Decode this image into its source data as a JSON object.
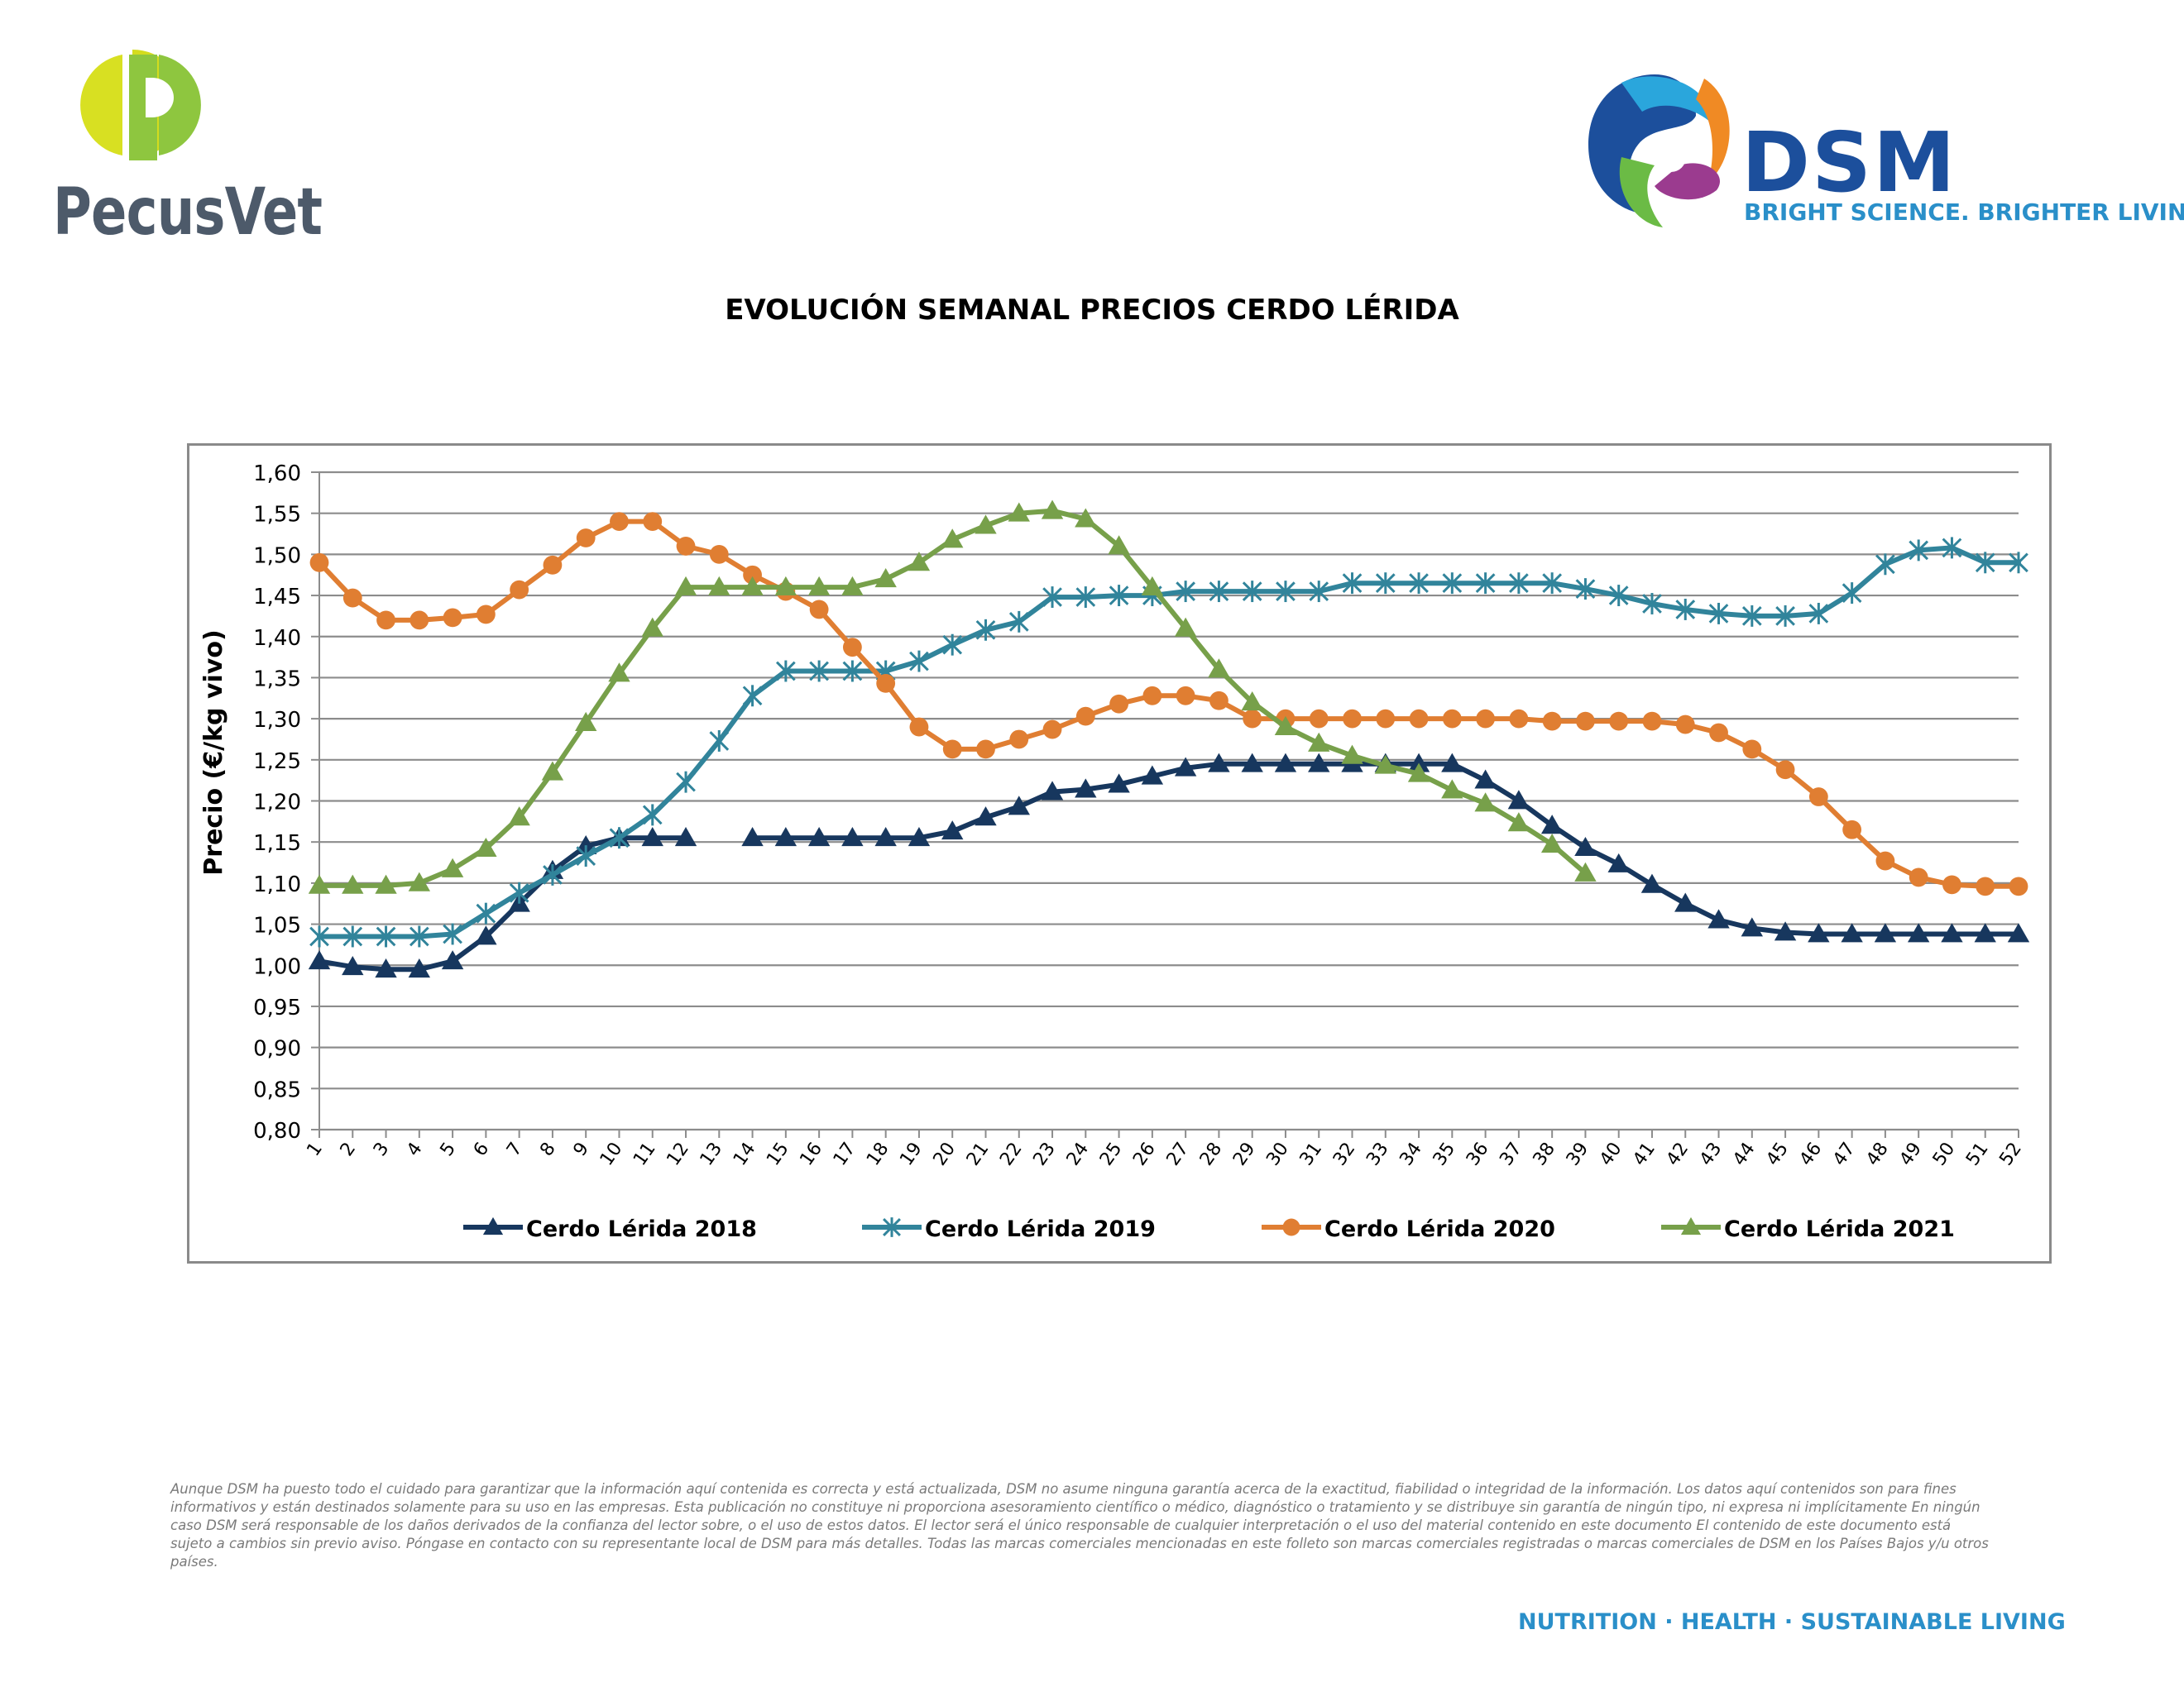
{
  "header": {
    "pecusvet_name": "PecusVet",
    "dsm_name": "DSM",
    "dsm_tagline": "BRIGHT SCIENCE. BRIGHTER LIVING."
  },
  "footer": {
    "disclaimer": "Aunque DSM ha puesto todo el cuidado para garantizar que la información aquí contenida es correcta y está actualizada, DSM no asume ninguna garantía acerca de la exactitud, fiabilidad o integridad de la información. Los datos aquí contenidos son para fines informativos y están destinados solamente para su uso en las empresas. Esta publicación no constituye ni proporciona asesoramiento científico o médico, diagnóstico o tratamiento y se distribuye sin garantía de ningún tipo, ni expresa ni implícitamente En ningún caso DSM será responsable de los daños derivados de la confianza del lector sobre, o el uso de estos datos. El lector será el único responsable de cualquier interpretación o el uso del material contenido en este documento El contenido de este documento está sujeto a cambios sin previo aviso. Póngase en contacto con su representante local de DSM para más detalles. Todas las marcas comerciales mencionadas en este folleto son marcas comerciales registradas o marcas comerciales de DSM en los Países Bajos y/u otros países.",
    "tagline": "NUTRITION · HEALTH · SUSTAINABLE LIVING"
  },
  "chart_data": {
    "type": "line",
    "title": "EVOLUCIÓN SEMANAL PRECIOS CERDO LÉRIDA",
    "xlabel": "",
    "ylabel": "Precio (€/kg vivo)",
    "ylim": [
      0.8,
      1.6
    ],
    "ystep": 0.05,
    "grid": true,
    "legend": "bottom",
    "x": [
      1,
      2,
      3,
      4,
      5,
      6,
      7,
      8,
      9,
      10,
      11,
      12,
      13,
      14,
      15,
      16,
      17,
      18,
      19,
      20,
      21,
      22,
      23,
      24,
      25,
      26,
      27,
      28,
      29,
      30,
      31,
      32,
      33,
      34,
      35,
      36,
      37,
      38,
      39,
      40,
      41,
      42,
      43,
      44,
      45,
      46,
      47,
      48,
      49,
      50,
      51,
      52
    ],
    "series": [
      {
        "name": "Cerdo Lérida 2018",
        "color": "#17375e",
        "marker": "triangle",
        "values": [
          1.005,
          0.998,
          0.995,
          0.995,
          1.005,
          1.035,
          1.075,
          1.115,
          1.145,
          1.155,
          1.155,
          1.155,
          null,
          1.155,
          1.155,
          1.155,
          1.155,
          1.155,
          1.155,
          1.163,
          1.18,
          1.193,
          1.211,
          1.214,
          1.22,
          1.23,
          1.24,
          1.245,
          1.245,
          1.245,
          1.245,
          1.245,
          1.245,
          1.245,
          1.245,
          1.225,
          1.2,
          1.17,
          1.143,
          1.123,
          1.098,
          1.075,
          1.055,
          1.045,
          1.04,
          1.038,
          1.038,
          1.038,
          1.038,
          1.038,
          1.038,
          1.038
        ]
      },
      {
        "name": "Cerdo Lérida 2019",
        "color": "#31849b",
        "marker": "star",
        "values": [
          1.035,
          1.035,
          1.035,
          1.035,
          1.038,
          1.063,
          1.088,
          1.11,
          1.133,
          1.155,
          1.183,
          1.223,
          1.273,
          1.328,
          1.358,
          1.358,
          1.358,
          1.358,
          1.37,
          1.39,
          1.408,
          1.418,
          1.448,
          1.448,
          1.45,
          1.45,
          1.455,
          1.455,
          1.455,
          1.455,
          1.455,
          1.465,
          1.465,
          1.465,
          1.465,
          1.465,
          1.465,
          1.465,
          1.458,
          1.45,
          1.44,
          1.433,
          1.428,
          1.425,
          1.425,
          1.428,
          1.453,
          1.488,
          1.505,
          1.508,
          1.49,
          1.49
        ]
      },
      {
        "name": "Cerdo Lérida 2020",
        "color": "#e07e32",
        "marker": "circle",
        "values": [
          1.49,
          1.447,
          1.42,
          1.42,
          1.423,
          1.427,
          1.457,
          1.487,
          1.52,
          1.54,
          1.54,
          1.51,
          1.5,
          1.475,
          1.455,
          1.433,
          1.387,
          1.343,
          1.29,
          1.263,
          1.263,
          1.275,
          1.287,
          1.303,
          1.318,
          1.328,
          1.328,
          1.322,
          1.3,
          1.3,
          1.3,
          1.3,
          1.3,
          1.3,
          1.3,
          1.3,
          1.3,
          1.297,
          1.297,
          1.297,
          1.297,
          1.293,
          1.283,
          1.263,
          1.238,
          1.205,
          1.165,
          1.127,
          1.107,
          1.098,
          1.096,
          1.096
        ]
      },
      {
        "name": "Cerdo Lérida 2021",
        "color": "#77a04a",
        "marker": "triangle",
        "values": [
          1.097,
          1.097,
          1.097,
          1.1,
          1.117,
          1.142,
          1.18,
          1.235,
          1.295,
          1.355,
          1.41,
          1.46,
          1.46,
          1.46,
          1.46,
          1.46,
          1.46,
          1.47,
          1.49,
          1.518,
          1.535,
          1.55,
          1.553,
          1.543,
          1.51,
          1.46,
          1.41,
          1.36,
          1.32,
          1.29,
          1.27,
          1.255,
          1.243,
          1.233,
          1.213,
          1.197,
          1.173,
          1.147,
          1.112,
          null,
          null,
          null,
          null,
          null,
          null,
          null,
          null,
          null,
          null,
          null,
          null,
          null
        ]
      }
    ]
  }
}
